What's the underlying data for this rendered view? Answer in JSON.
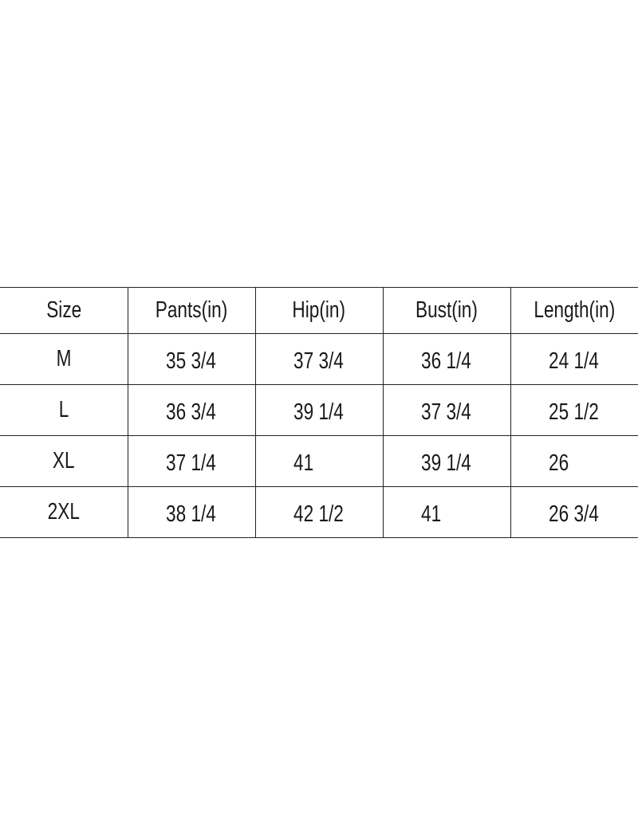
{
  "headers": [
    "Size",
    "Pants(in)",
    "Hip(in)",
    "Bust(in)",
    "Length(in)"
  ],
  "rows": [
    [
      "M",
      "35 3/4",
      "37 3/4",
      "36 1/4",
      "24 1/4"
    ],
    [
      "L",
      "36 3/4",
      "39 1/4",
      "37 3/4",
      "25 1/2"
    ],
    [
      "XL",
      "37 1/4",
      "41",
      "39 1/4",
      "26"
    ],
    [
      "2XL",
      "38 1/4",
      "42 1/2",
      "41",
      "26 3/4"
    ]
  ]
}
